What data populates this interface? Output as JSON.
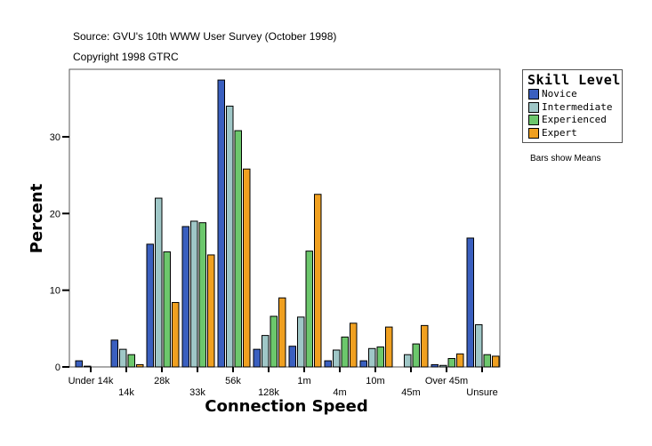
{
  "source": "Source: GVU's 10th WWW User Survey (October 1998)",
  "copyright": "Copyright 1998 GTRC",
  "note": "Bars show Means",
  "chart_data": {
    "type": "bar",
    "xlabel": "Connection Speed",
    "ylabel": "Percent",
    "ylim": [
      0,
      38.8
    ],
    "yticks": [
      0,
      10,
      20,
      30
    ],
    "grid": false,
    "legend_title": "Skill Level",
    "legend_position": "right",
    "categories": [
      "Under 14k",
      "14k",
      "28k",
      "33k",
      "56k",
      "128k",
      "1m",
      "4m",
      "10m",
      "45m",
      "Over 45m",
      "Unsure"
    ],
    "series": [
      {
        "name": "Novice",
        "color": "#3a5fbf",
        "values": [
          0.8,
          3.5,
          16.0,
          18.3,
          37.4,
          2.3,
          2.7,
          0.8,
          0.8,
          0,
          0.3,
          16.8
        ]
      },
      {
        "name": "Intermediate",
        "color": "#9fc7c7",
        "values": [
          0.1,
          2.3,
          22.0,
          19.0,
          34.0,
          4.1,
          6.5,
          2.2,
          2.4,
          1.6,
          0.2,
          5.5
        ]
      },
      {
        "name": "Experienced",
        "color": "#6cc76c",
        "values": [
          0,
          1.6,
          15.0,
          18.8,
          30.8,
          6.6,
          15.1,
          3.9,
          2.6,
          3.0,
          1.1,
          1.6
        ]
      },
      {
        "name": "Expert",
        "color": "#f0a020",
        "values": [
          0,
          0.3,
          8.4,
          14.6,
          25.8,
          9.0,
          22.5,
          5.7,
          5.2,
          5.4,
          1.7,
          1.4
        ]
      }
    ]
  }
}
